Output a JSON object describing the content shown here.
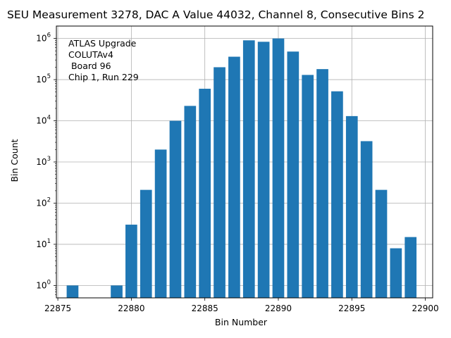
{
  "chart_data": {
    "type": "bar",
    "title": "SEU Measurement 3278, DAC A Value 44032, Channel 8, Consecutive Bins 2",
    "xlabel": "Bin Number",
    "ylabel": "Bin Count",
    "yscale": "log",
    "grid": true,
    "bar_color": "#1f77b4",
    "xlim": [
      22874.9,
      22900.5
    ],
    "ylim": [
      0.5,
      2000000
    ],
    "xticks": [
      22875,
      22880,
      22885,
      22890,
      22895,
      22900
    ],
    "xtick_labels": [
      "22875",
      "22880",
      "22885",
      "22890",
      "22895",
      "22900"
    ],
    "yticks": [
      1,
      10,
      100,
      1000,
      10000,
      100000,
      1000000
    ],
    "ytick_labels": [
      {
        "base": "10",
        "exp": "0"
      },
      {
        "base": "10",
        "exp": "1"
      },
      {
        "base": "10",
        "exp": "2"
      },
      {
        "base": "10",
        "exp": "3"
      },
      {
        "base": "10",
        "exp": "4"
      },
      {
        "base": "10",
        "exp": "5"
      },
      {
        "base": "10",
        "exp": "6"
      }
    ],
    "x": [
      22876,
      22879,
      22880,
      22881,
      22882,
      22883,
      22884,
      22885,
      22886,
      22887,
      22888,
      22889,
      22890,
      22891,
      22892,
      22893,
      22894,
      22895,
      22896,
      22897,
      22898,
      22899
    ],
    "values": [
      1,
      1,
      30,
      210,
      2000,
      10000,
      23000,
      60000,
      200000,
      360000,
      900000,
      830000,
      1000000,
      480000,
      130000,
      180000,
      52000,
      13000,
      3200,
      210,
      8,
      15
    ],
    "annotation": [
      "ATLAS Upgrade",
      "COLUTAv4",
      " Board 96",
      "Chip 1, Run 229"
    ]
  }
}
